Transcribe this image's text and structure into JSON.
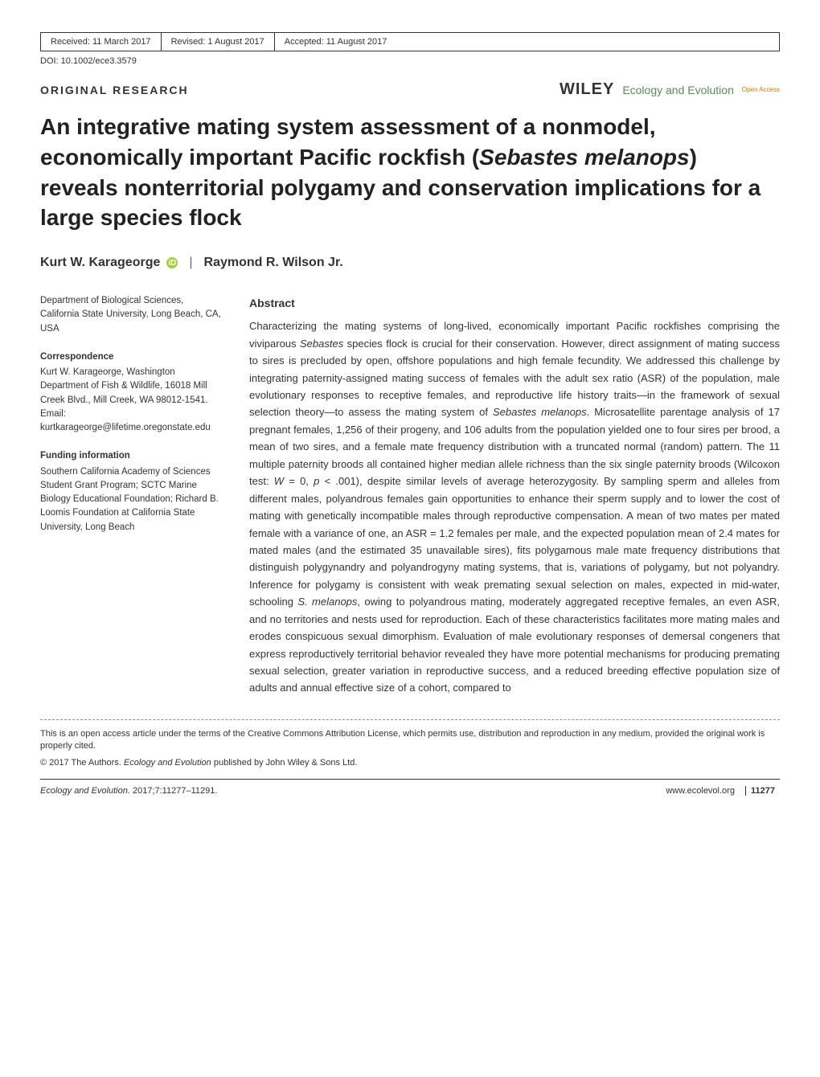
{
  "topbar": {
    "received_label": "Received:",
    "received_date": "11 March 2017",
    "revised_label": "Revised:",
    "revised_date": "1 August 2017",
    "accepted_label": "Accepted:",
    "accepted_date": "11 August 2017"
  },
  "doi": "DOI: 10.1002/ece3.3579",
  "article_type": "ORIGINAL RESEARCH",
  "brand": {
    "wiley": "WILEY",
    "journal": "Ecology and Evolution",
    "open_access": "Open Access"
  },
  "title": "An integrative mating system assessment of a nonmodel, economically important Pacific rockfish (Sebastes melanops) reveals nonterritorial polygamy and conservation implications for a large species flock",
  "authors": {
    "a1": "Kurt W. Karageorge",
    "a2": "Raymond R. Wilson Jr."
  },
  "sidebar": {
    "affiliation": "Department of Biological Sciences, California State University, Long Beach, CA, USA",
    "correspondence_heading": "Correspondence",
    "correspondence_body": "Kurt W. Karageorge, Washington Department of Fish & Wildlife, 16018 Mill Creek Blvd., Mill Creek, WA 98012-1541.",
    "correspondence_email": "Email: kurtkarageorge@lifetime.oregonstate.edu",
    "funding_heading": "Funding information",
    "funding_body": "Southern California Academy of Sciences Student Grant Program; SCTC Marine Biology Educational Foundation; Richard B. Loomis Foundation at California State University, Long Beach"
  },
  "abstract": {
    "heading": "Abstract",
    "body_parts": [
      "Characterizing the mating systems of long-lived, economically important Pacific rockfishes comprising the viviparous ",
      "Sebastes",
      " species flock is crucial for their conservation. However, direct assignment of mating success to sires is precluded by open, offshore populations and high female fecundity. We addressed this challenge by integrating paternity-assigned mating success of females with the adult sex ratio (ASR) of the population, male evolutionary responses to receptive females, and reproductive life history traits—in the framework of sexual selection theory—to assess the mating system of ",
      "Sebastes melanops",
      ". Microsatellite parentage analysis of 17 pregnant females, 1,256 of their progeny, and 106 adults from the population yielded one to four sires per brood, a mean of two sires, and a female mate frequency distribution with a truncated normal (random) pattern. The 11 multiple paternity broods all contained higher median allele richness than the six single paternity broods (Wilcoxon test: ",
      "W",
      " = 0, ",
      "p",
      " < .001), despite similar levels of average heterozygosity. By sampling sperm and alleles from different males, polyandrous females gain opportunities to enhance their sperm supply and to lower the cost of mating with genetically incompatible males through reproductive compensation. A mean of two mates per mated female with a variance of one, an ASR = 1.2 females per male, and the expected population mean of 2.4 mates for mated males (and the estimated 35 unavailable sires), fits polygamous male mate frequency distributions that distinguish polygynandry and polyandrogyny mating systems, that is, variations of polygamy, but not polyandry. Inference for polygamy is consistent with weak premating sexual selection on males, expected in mid-water, schooling ",
      "S. melanops",
      ", owing to polyandrous mating, moderately aggregated receptive females, an even ASR, and no territories and nests used for reproduction. Each of these characteristics facilitates more mating males and erodes conspicuous sexual dimorphism. Evaluation of male evolutionary responses of demersal congeners that express reproductively territorial behavior revealed they have more potential mechanisms for producing premating sexual selection, greater variation in reproductive success, and a reduced breeding effective population size of adults and annual effective size of a cohort, compared to"
    ]
  },
  "footer": {
    "license": "This is an open access article under the terms of the Creative Commons Attribution License, which permits use, distribution and reproduction in any medium, provided the original work is properly cited.",
    "copyright": "© 2017 The Authors. Ecology and Evolution published by John Wiley & Sons Ltd.",
    "citation": "Ecology and Evolution. 2017;7:11277–11291.",
    "url": "www.ecolevol.org",
    "page": "11277"
  },
  "colors": {
    "journal_green": "#5b8a5b",
    "orcid_green": "#a6ce39",
    "open_access_orange": "#c97a00"
  }
}
